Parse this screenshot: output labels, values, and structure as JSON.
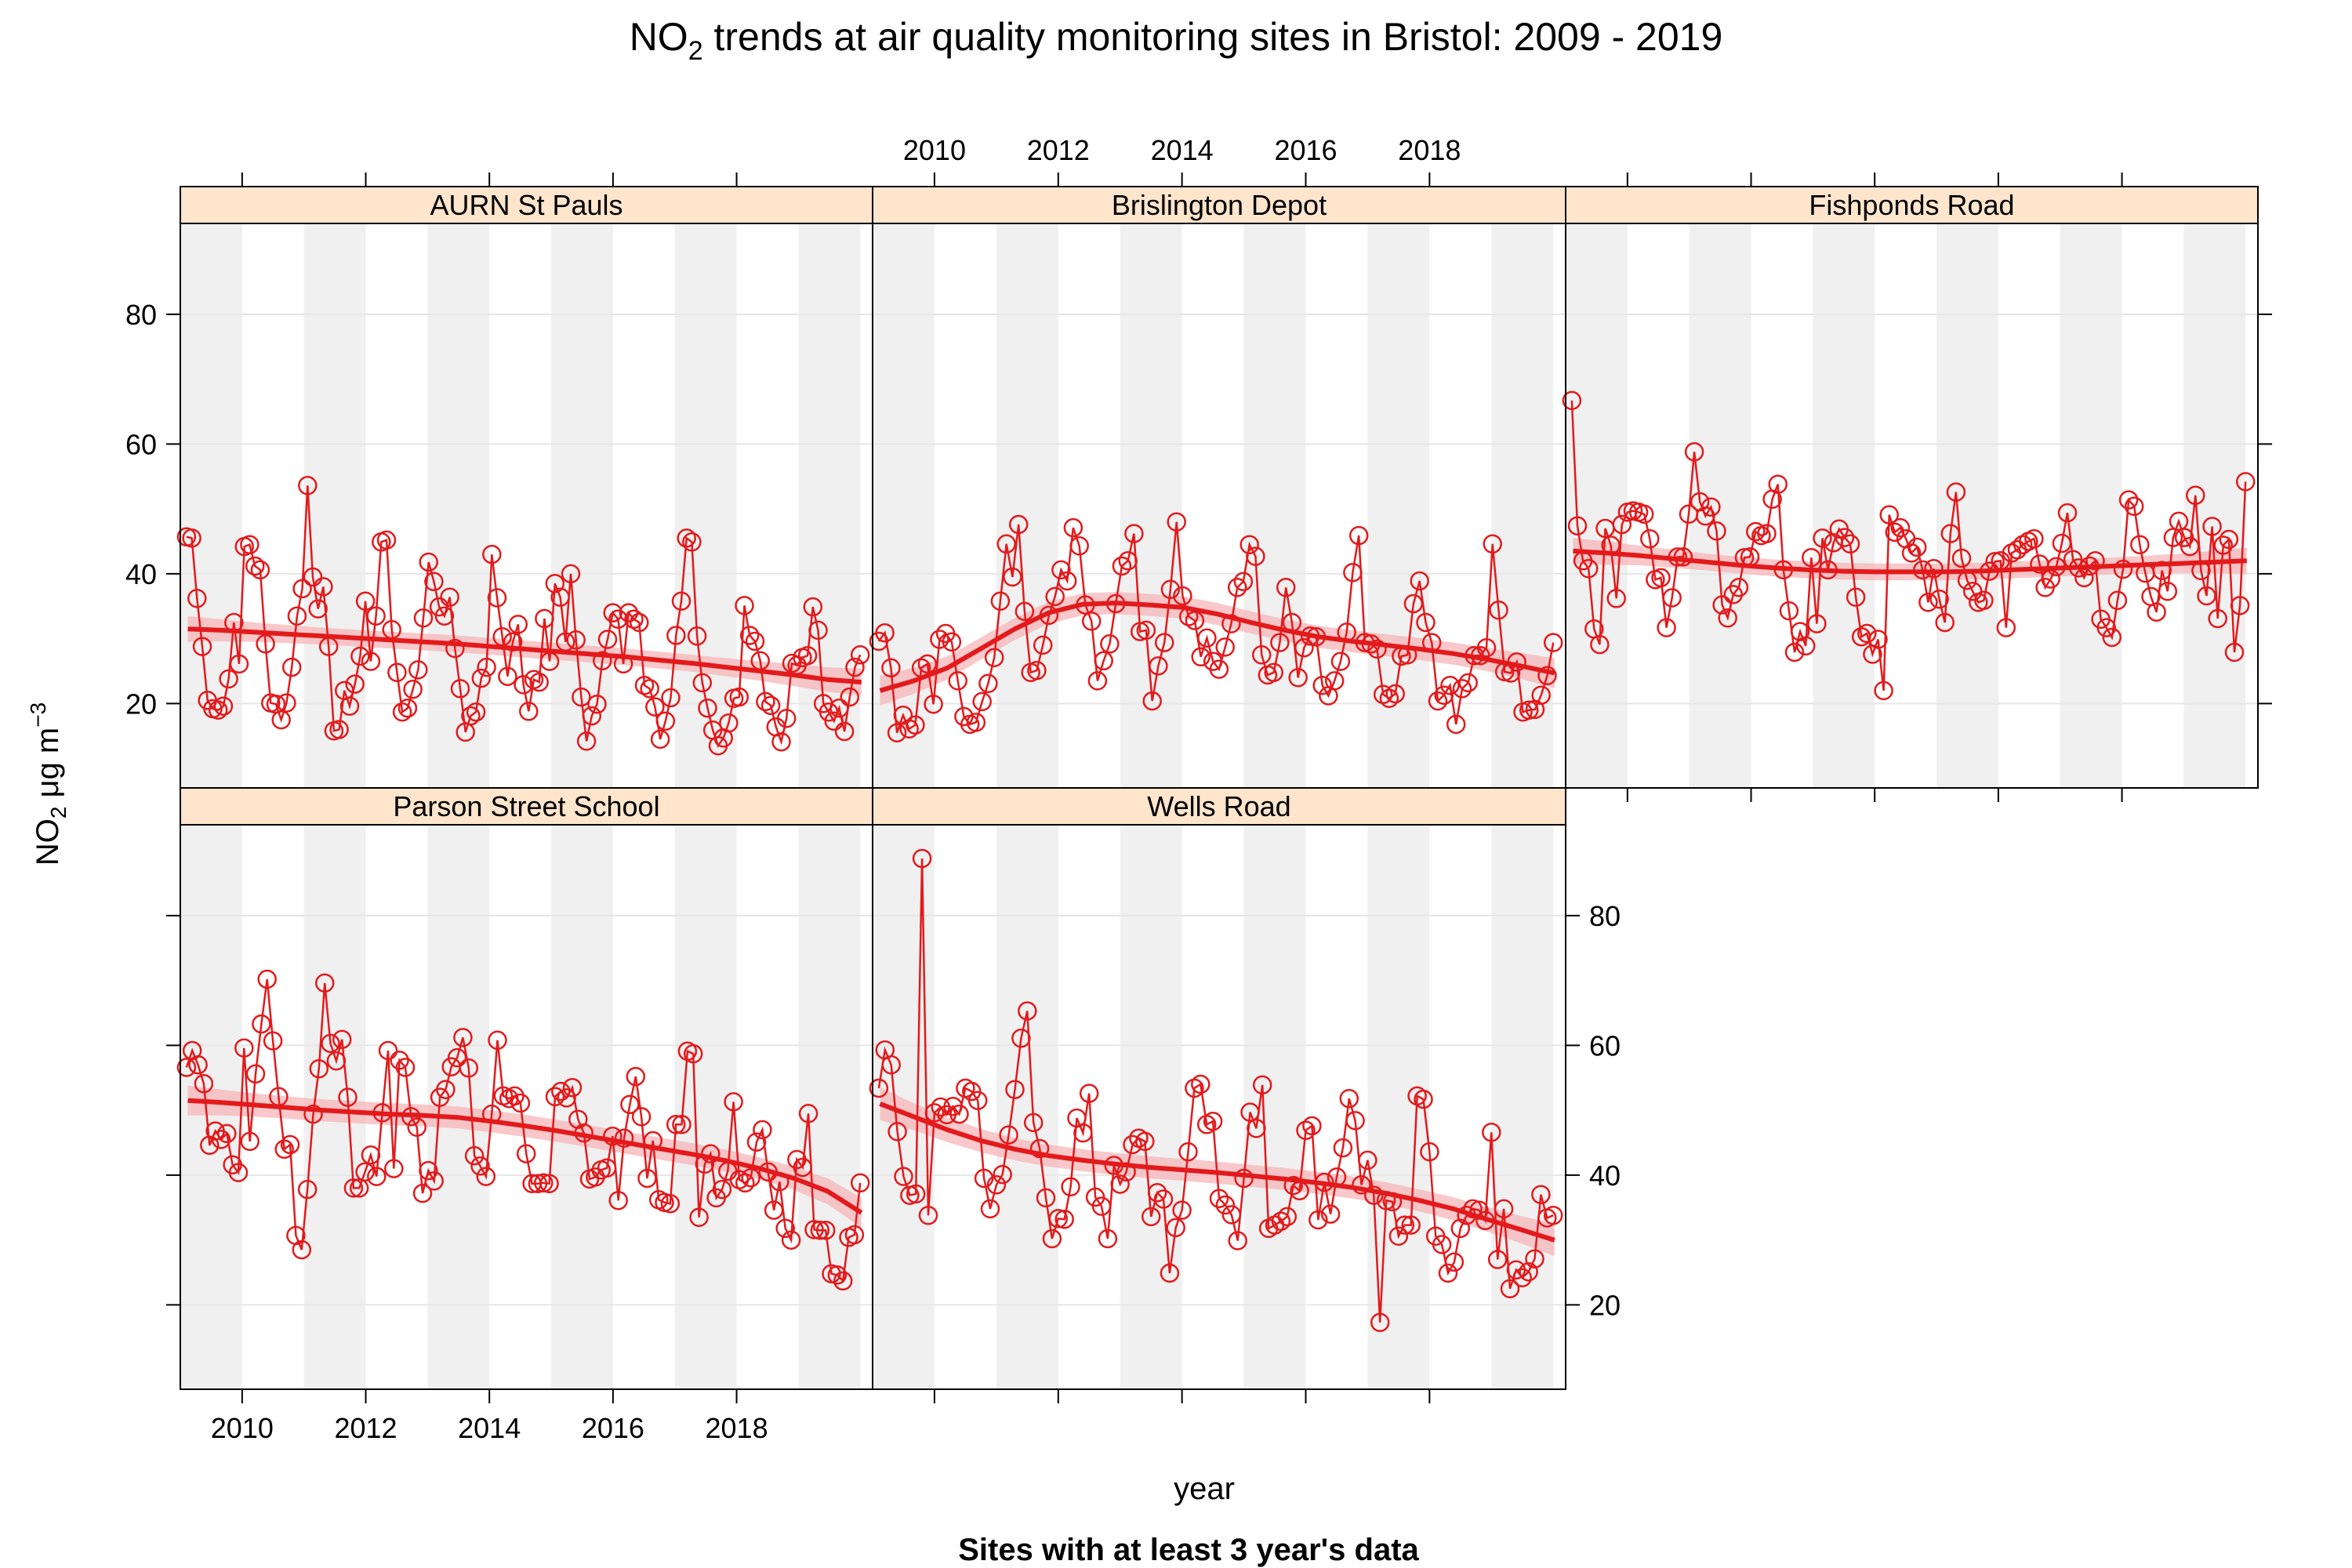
{
  "chart_data": {
    "type": "line",
    "title_main": "NO",
    "title_sub": "2",
    "title_rest": " trends at air quality monitoring sites in Bristol: 2009 - 2019",
    "xlabel": "year",
    "ylabel_main": "NO",
    "ylabel_sub": "2",
    "ylabel_unit": " μg m",
    "ylabel_sup": "−3",
    "subtitle": "Sites with at least 3 year's data",
    "xlim": [
      2009.0,
      2020.2
    ],
    "ylim": [
      7,
      94
    ],
    "x_ticks": [
      2010,
      2012,
      2014,
      2016,
      2018
    ],
    "y_ticks": [
      20,
      40,
      60,
      80
    ],
    "grid": true,
    "year_bands": [
      2009,
      2011,
      2013,
      2015,
      2017,
      2019
    ],
    "colors": {
      "series": "#e31a1c",
      "band": "#f7b6b8",
      "strip": "#ffe5cc",
      "shade": "#f0f0f0",
      "grid": "#e6e6e6"
    },
    "panels": [
      {
        "name": "AURN St Pauls",
        "values": [
          45.7,
          45.5,
          36.2,
          28.8,
          20.5,
          19.2,
          19.0,
          19.6,
          23.8,
          32.5,
          26.1,
          44.2,
          44.5,
          41.2,
          40.6,
          29.2,
          20.1,
          19.9,
          17.5,
          20.1,
          25.6,
          33.5,
          37.7,
          53.6,
          39.5,
          34.6,
          38.0,
          28.8,
          15.8,
          16.0,
          22.0,
          19.6,
          23.0,
          27.3,
          35.8,
          26.5,
          33.5,
          44.9,
          45.2,
          31.4,
          24.8,
          18.7,
          19.3,
          22.2,
          25.2,
          33.2,
          41.8,
          38.8,
          34.9,
          33.5,
          36.4,
          28.5,
          22.3,
          15.6,
          18.1,
          18.7,
          23.9,
          25.6,
          43.0,
          36.3,
          30.3,
          24.2,
          29.5,
          32.2,
          22.9,
          18.8,
          23.7,
          23.3,
          33.1,
          26.5,
          38.5,
          36.4,
          29.5,
          40.0,
          29.8,
          21.0,
          14.2,
          18.1,
          19.9,
          26.6,
          29.9,
          34.0,
          33.0,
          26.1,
          34.0,
          33.0,
          32.5,
          22.8,
          22.3,
          19.5,
          14.5,
          17.3,
          20.9,
          30.5,
          35.8,
          45.5,
          44.9,
          30.4,
          23.2,
          19.3,
          15.9,
          13.5,
          14.7,
          17.0,
          20.8,
          21.0,
          35.1,
          30.5,
          29.6,
          26.6,
          20.3,
          19.7,
          16.4,
          14.1,
          17.7,
          26.2,
          25.9,
          27.1,
          27.4,
          34.9,
          31.3,
          20.0,
          18.7,
          17.3,
          19.3,
          15.7,
          21.0,
          25.6,
          27.5
        ],
        "trend": [
          31.5,
          31.3,
          31.0,
          30.7,
          30.4,
          30.1,
          29.8,
          29.5,
          29.2,
          28.8,
          28.4,
          28.0,
          27.6,
          27.2,
          26.7,
          26.2,
          25.6,
          25.0,
          24.4,
          23.7,
          23.3
        ],
        "band": [
          2.0,
          1.7,
          1.5,
          1.4,
          1.3,
          1.3,
          1.3,
          1.3,
          1.3,
          1.3,
          1.3,
          1.3,
          1.3,
          1.3,
          1.3,
          1.3,
          1.4,
          1.5,
          1.7,
          1.9,
          2.1
        ]
      },
      {
        "name": "Brislington Depot",
        "values": [
          29.6,
          30.9,
          25.5,
          15.5,
          18.2,
          16.1,
          16.7,
          25.5,
          26.1,
          19.9,
          29.9,
          30.8,
          29.5,
          23.5,
          18.0,
          16.8,
          17.1,
          20.3,
          23.1,
          27.1,
          35.8,
          44.6,
          39.5,
          47.6,
          34.2,
          24.8,
          25.1,
          29.0,
          33.6,
          36.5,
          40.6,
          38.9,
          47.1,
          44.3,
          35.2,
          32.7,
          23.5,
          26.6,
          29.2,
          35.4,
          41.2,
          42.0,
          46.2,
          31.1,
          31.3,
          20.4,
          25.8,
          29.4,
          37.6,
          48.0,
          36.6,
          33.4,
          32.8,
          27.2,
          30.1,
          26.5,
          25.3,
          28.7,
          32.3,
          37.9,
          38.8,
          44.5,
          42.7,
          27.5,
          24.4,
          24.8,
          29.4,
          37.9,
          32.5,
          24.0,
          28.6,
          30.4,
          30.3,
          22.8,
          21.2,
          23.5,
          26.5,
          31.0,
          40.2,
          45.9,
          29.4,
          29.2,
          28.4,
          21.4,
          20.8,
          21.5,
          27.3,
          27.5,
          35.4,
          38.9,
          32.5,
          29.4,
          20.4,
          21.3,
          22.8,
          16.8,
          22.3,
          23.2,
          27.4,
          27.4,
          28.6,
          44.6,
          34.4,
          24.9,
          24.7,
          26.4,
          18.7,
          19.0,
          19.1,
          21.3,
          24.3,
          29.4
        ],
        "trend": [
          22.0,
          23.5,
          25.5,
          28.5,
          31.5,
          34.0,
          35.3,
          35.5,
          35.2,
          34.8,
          33.8,
          32.5,
          31.3,
          30.3,
          29.6,
          29.0,
          28.4,
          27.7,
          26.8,
          25.8,
          24.7
        ],
        "band": [
          2.3,
          2.0,
          1.8,
          1.7,
          1.7,
          1.7,
          1.7,
          1.7,
          1.7,
          1.7,
          1.7,
          1.7,
          1.7,
          1.7,
          1.7,
          1.7,
          1.7,
          1.7,
          1.8,
          2.0,
          2.3
        ]
      },
      {
        "name": "Fishponds Road",
        "values": [
          66.7,
          47.4,
          42.0,
          40.8,
          31.5,
          29.1,
          47.0,
          44.4,
          36.2,
          47.6,
          49.5,
          49.7,
          49.5,
          49.2,
          45.4,
          39.1,
          39.4,
          31.7,
          36.3,
          42.6,
          42.6,
          49.2,
          58.8,
          51.1,
          48.9,
          50.3,
          46.6,
          35.2,
          33.2,
          36.8,
          37.9,
          42.5,
          42.6,
          46.5,
          45.9,
          46.2,
          51.5,
          53.8,
          40.6,
          34.3,
          27.9,
          31.1,
          28.9,
          42.5,
          32.3,
          45.5,
          40.6,
          44.8,
          46.9,
          45.6,
          44.6,
          36.4,
          30.3,
          30.8,
          27.6,
          29.9,
          22.0,
          49.1,
          46.4,
          47.1,
          45.4,
          43.2,
          44.1,
          40.6,
          35.6,
          40.8,
          36.1,
          32.5,
          46.2,
          52.6,
          42.4,
          39.0,
          37.3,
          35.6,
          35.9,
          40.4,
          41.9,
          42.0,
          31.7,
          43.2,
          43.7,
          44.5,
          45.0,
          45.4,
          41.5,
          37.9,
          39.2,
          41.1,
          44.7,
          49.4,
          42.2,
          40.9,
          39.4,
          41.2,
          42.0,
          33.0,
          31.7,
          30.2,
          35.9,
          40.7,
          51.4,
          50.4,
          44.5,
          40.1,
          36.5,
          34.1,
          40.5,
          37.3,
          45.6,
          48.1,
          45.6,
          44.2,
          52.1,
          40.5,
          36.6,
          47.3,
          33.1,
          44.4,
          45.3,
          27.9,
          35.1,
          54.2
        ],
        "trend": [
          43.5,
          43.2,
          42.8,
          42.3,
          41.8,
          41.3,
          40.9,
          40.6,
          40.4,
          40.3,
          40.3,
          40.3,
          40.4,
          40.6,
          40.8,
          41.0,
          41.2,
          41.4,
          41.6,
          41.8,
          42.0
        ],
        "band": [
          2.0,
          1.8,
          1.5,
          1.4,
          1.3,
          1.3,
          1.3,
          1.3,
          1.3,
          1.3,
          1.3,
          1.3,
          1.3,
          1.3,
          1.3,
          1.3,
          1.3,
          1.4,
          1.5,
          1.7,
          2.0
        ]
      },
      {
        "name": "Parson Street School",
        "values": [
          56.6,
          59.2,
          57.0,
          54.1,
          44.6,
          46.8,
          45.5,
          46.4,
          41.6,
          40.4,
          59.6,
          45.2,
          55.6,
          63.3,
          70.2,
          60.7,
          52.1,
          44.0,
          44.7,
          30.7,
          28.5,
          37.8,
          49.4,
          56.4,
          69.6,
          60.3,
          57.6,
          60.9,
          52.0,
          38.0,
          38.0,
          40.5,
          43.1,
          39.8,
          49.6,
          59.2,
          41.0,
          57.7,
          56.6,
          49.0,
          47.4,
          37.2,
          40.7,
          39.1,
          52.0,
          53.2,
          56.7,
          58.1,
          61.2,
          56.5,
          43.0,
          41.4,
          39.8,
          49.4,
          60.8,
          52.2,
          51.8,
          52.2,
          51.1,
          43.3,
          38.7,
          38.7,
          38.8,
          38.7,
          52.1,
          52.9,
          51.9,
          53.5,
          48.6,
          46.5,
          39.4,
          39.7,
          40.8,
          41.1,
          46.0,
          36.1,
          45.7,
          50.9,
          55.2,
          49.0,
          39.5,
          45.3,
          36.2,
          35.8,
          35.6,
          47.8,
          47.8,
          59.1,
          58.7,
          33.5,
          41.7,
          43.3,
          36.5,
          37.8,
          40.6,
          51.3,
          39.3,
          38.8,
          39.6,
          45.1,
          47.0,
          40.5,
          34.6,
          39.0,
          31.8,
          30.0,
          42.4,
          41.2,
          49.5,
          31.6,
          31.5,
          31.5,
          24.8,
          24.6,
          23.7,
          30.4,
          30.8,
          38.8
        ],
        "trend": [
          51.5,
          51.2,
          50.8,
          50.4,
          50.0,
          49.7,
          49.4,
          49.2,
          48.9,
          48.3,
          47.6,
          46.8,
          45.9,
          45.0,
          44.1,
          43.2,
          42.2,
          41.0,
          39.5,
          37.5,
          34.2
        ],
        "band": [
          2.3,
          2.0,
          1.8,
          1.7,
          1.7,
          1.7,
          1.7,
          1.7,
          1.7,
          1.7,
          1.7,
          1.7,
          1.7,
          1.7,
          1.7,
          1.7,
          1.7,
          1.7,
          1.8,
          2.0,
          2.3
        ]
      },
      {
        "name": "Wells Road",
        "values": [
          53.4,
          59.3,
          57.0,
          46.7,
          39.8,
          36.9,
          37.1,
          88.8,
          33.8,
          49.6,
          50.5,
          49.3,
          50.6,
          49.4,
          53.4,
          52.9,
          51.5,
          39.5,
          34.8,
          38.5,
          40.1,
          46.2,
          53.2,
          61.1,
          65.3,
          48.1,
          44.1,
          36.5,
          30.2,
          33.3,
          33.2,
          38.2,
          48.8,
          46.5,
          52.6,
          36.6,
          35.2,
          30.2,
          41.5,
          38.6,
          40.5,
          44.7,
          45.7,
          45.2,
          33.6,
          37.3,
          36.3,
          24.9,
          31.9,
          34.6,
          43.6,
          53.4,
          54.0,
          47.8,
          48.3,
          36.4,
          35.4,
          33.9,
          29.9,
          39.5,
          49.7,
          47.2,
          53.9,
          31.8,
          32.3,
          32.9,
          33.6,
          38.4,
          37.6,
          46.9,
          47.6,
          33.1,
          38.9,
          34.0,
          39.7,
          44.2,
          51.8,
          48.4,
          38.5,
          42.3,
          36.9,
          17.3,
          36.1,
          35.9,
          30.6,
          32.3,
          32.3,
          52.2,
          51.7,
          43.6,
          30.6,
          29.3,
          24.9,
          26.6,
          31.8,
          33.8,
          34.8,
          34.6,
          33.0,
          46.6,
          27.0,
          34.8,
          22.5,
          25.4,
          24.2,
          25.1,
          27.1,
          37.0,
          33.4,
          33.8
        ],
        "trend": [
          51.0,
          49.0,
          47.0,
          45.3,
          44.0,
          43.0,
          42.3,
          41.7,
          41.2,
          40.8,
          40.4,
          39.9,
          39.4,
          38.8,
          38.1,
          37.2,
          36.1,
          34.8,
          33.2,
          31.6,
          30.0
        ],
        "band": [
          2.5,
          2.1,
          1.9,
          1.8,
          1.7,
          1.7,
          1.7,
          1.7,
          1.7,
          1.7,
          1.7,
          1.7,
          1.7,
          1.7,
          1.7,
          1.7,
          1.7,
          1.8,
          1.9,
          2.1,
          2.5
        ]
      }
    ]
  }
}
